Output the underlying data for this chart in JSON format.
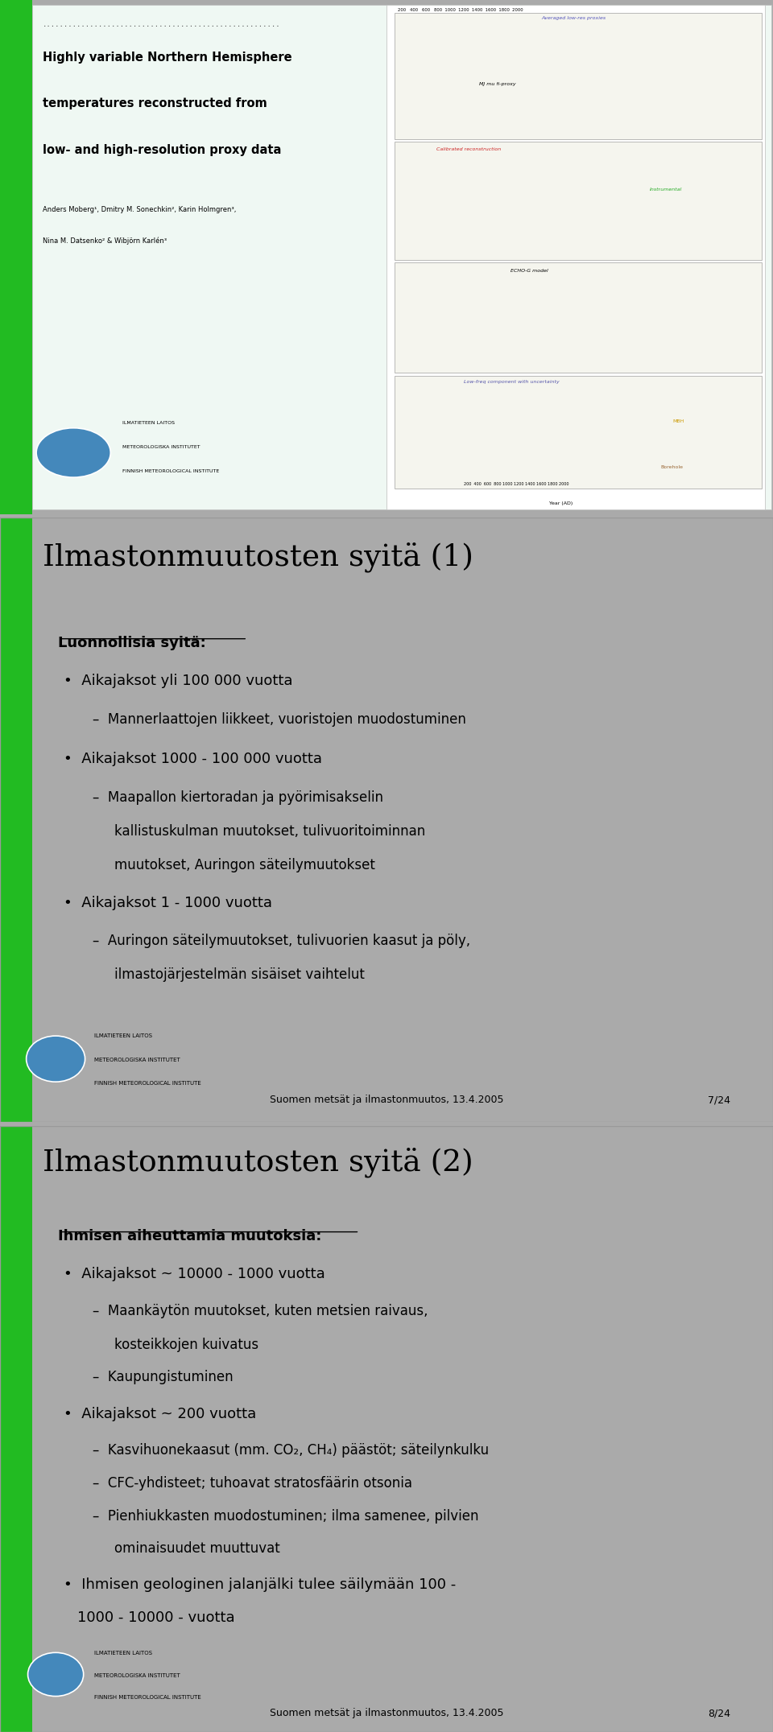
{
  "bg_color": "#aaaaaa",
  "slide_bg": "#e8f5f0",
  "green_bar_color": "#22bb22",
  "slide1": {
    "title": "Ilmastonmuutosten syitä (1)",
    "subtitle": "Luonnollisia syitä",
    "bullet1": "Aikajaksot yli 100 000 vuotta",
    "sub1": "Mannerlaattojen liikkeet, vuoristojen muodostuminen",
    "bullet2": "Aikajaksot 1000 - 100 000 vuotta",
    "sub2a": "Maapallon kiertoradan ja pyörimisakselin",
    "sub2b": "kallistuskulman muutokset, tulivuoritoiminnan",
    "sub2c": "muutokset, Auringon säteilymuutokset",
    "bullet3": "Aikajaksot 1 - 1000 vuotta",
    "sub3a": "Auringon säteilymuutokset, tulivuorien kaasut ja pöly,",
    "sub3b": "ilmastojärjestelmän sisäiset vaihtelut",
    "footer": "Suomen metsät ja ilmastonmuutos, 13.4.2005",
    "page": "7/24"
  },
  "slide2": {
    "title": "Ilmastonmuutosten syitä (2)",
    "subtitle": "Ihmisen aiheuttamia muutoksia:",
    "bullet1": "Aikajaksot ~ 10000 - 1000 vuotta",
    "sub1a": "Maankäytön muutokset, kuten metsien raivaus,",
    "sub1b": "kosteikkojen kuivatus",
    "sub1c": "Kaupungistuminen",
    "bullet2": "Aikajaksot ~ 200 vuotta",
    "sub2a": "Kasvihuonekaasut (mm. CO₂, CH₄) päästöt; säteilynkulku",
    "sub2b": "CFC-yhdisteet; tuhoavat stratosfäärin otsonia",
    "sub2c": "Pienhiukkasten muodostuminen; ilma samenee, pilvien",
    "sub2d": "ominaisuudet muuttuvat",
    "bullet3": "Ihmisen geologinen jalanjälki tulee säilymään 100 -",
    "bullet3b": "1000 - 10000 - vuotta",
    "footer": "Suomen metsät ja ilmastonmuutos, 13.4.2005",
    "page": "8/24"
  },
  "logo_color": "#4488bb",
  "logo_inst1": "ILMATIETEEN LAITOS",
  "logo_inst2": "METEOROLOGISKA INSTITUTET",
  "logo_inst3": "FINNISH METEOROLOGICAL INSTITUTE"
}
